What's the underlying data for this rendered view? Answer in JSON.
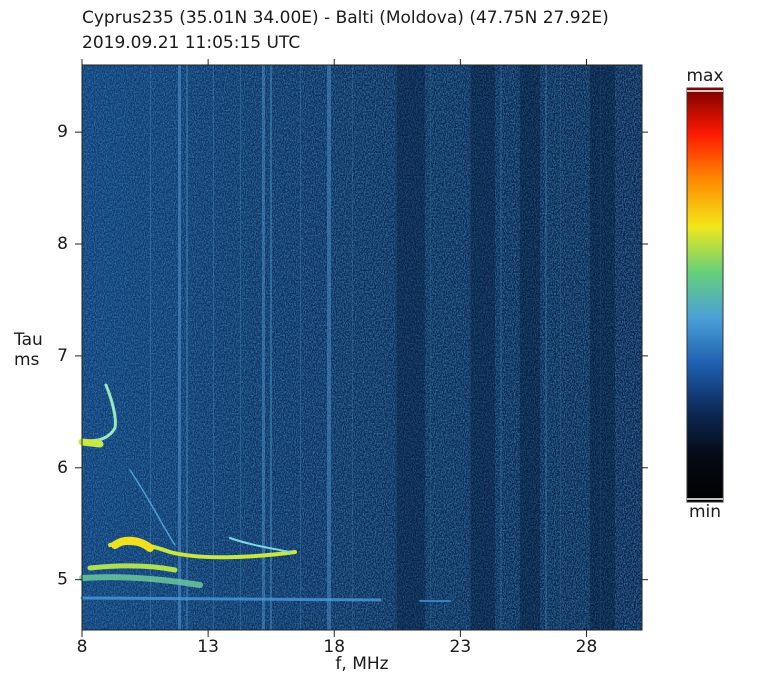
{
  "chart_data": {
    "type": "spectrogram",
    "title_lines": [
      "Cyprus235 (35.01N 34.00E)  -  Balti (Moldova) (47.75N 27.92E)",
      "2019.09.21    11:05:15  UTC"
    ],
    "xlabel": "f, MHz",
    "ylabel_lines": [
      "Tau",
      "ms"
    ],
    "xlim": [
      8,
      30.2
    ],
    "xticks": [
      8,
      13,
      18,
      23,
      28
    ],
    "ylim": [
      4.55,
      9.6
    ],
    "yticks": [
      5,
      6,
      7,
      8,
      9
    ],
    "colorbar": {
      "max_label": "max",
      "min_label": "min",
      "colors": [
        "#000000",
        "#050a14",
        "#0d2a5a",
        "#1f5fb0",
        "#4aa0d8",
        "#66d07a",
        "#f2e619",
        "#ff8a00",
        "#ff1a00",
        "#7a0000"
      ]
    }
  }
}
